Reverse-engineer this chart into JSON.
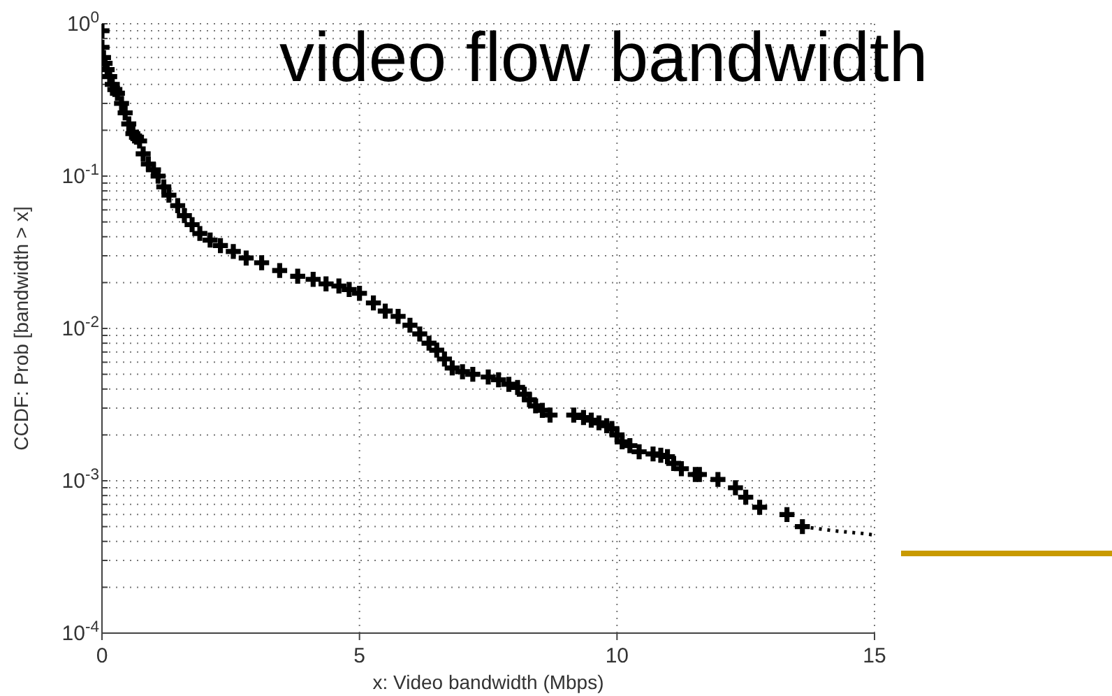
{
  "chart_data": {
    "type": "scatter",
    "title": "video flow bandwidth",
    "xlabel": "x: Video bandwidth (Mbps)",
    "ylabel": "CCDF: Prob [bandwidth > x]",
    "log": "y",
    "grid": true,
    "xlim": [
      0,
      15
    ],
    "xticks": [
      0,
      5,
      10,
      15
    ],
    "ylim": [
      0.0001,
      1
    ],
    "yticks": [
      {
        "value": 0.0001,
        "label": "10$^{-4}$"
      },
      {
        "value": 0.0002,
        "label": null
      },
      {
        "value": 0.0003,
        "label": null
      },
      {
        "value": 0.0004,
        "label": null
      },
      {
        "value": 0.0005,
        "label": null
      },
      {
        "value": 0.0006,
        "label": null
      },
      {
        "value": 0.0007,
        "label": null
      },
      {
        "value": 0.0008,
        "label": null
      },
      {
        "value": 0.0009,
        "label": null
      },
      {
        "value": 0.001,
        "label": "10$^{-3}$"
      },
      {
        "value": 0.002,
        "label": null
      },
      {
        "value": 0.003,
        "label": null
      },
      {
        "value": 0.004,
        "label": null
      },
      {
        "value": 0.005,
        "label": null
      },
      {
        "value": 0.006,
        "label": null
      },
      {
        "value": 0.007,
        "label": null
      },
      {
        "value": 0.008,
        "label": null
      },
      {
        "value": 0.009,
        "label": null
      },
      {
        "value": 0.01,
        "label": "10$^{-2}$"
      },
      {
        "value": 0.02,
        "label": null
      },
      {
        "value": 0.03,
        "label": null
      },
      {
        "value": 0.04,
        "label": null
      },
      {
        "value": 0.05,
        "label": null
      },
      {
        "value": 0.06,
        "label": null
      },
      {
        "value": 0.07,
        "label": null
      },
      {
        "value": 0.08,
        "label": null
      },
      {
        "value": 0.09,
        "label": null
      },
      {
        "value": 0.1,
        "label": "10$^{-1}$"
      },
      {
        "value": 0.2,
        "label": null
      },
      {
        "value": 0.3,
        "label": null
      },
      {
        "value": 0.4,
        "label": null
      },
      {
        "value": 0.5,
        "label": null
      },
      {
        "value": 0.6,
        "label": null
      },
      {
        "value": 0.7,
        "label": null
      },
      {
        "value": 0.8,
        "label": null
      },
      {
        "value": 0.9,
        "label": null
      },
      {
        "value": 1,
        "label": "10$^{0}$"
      }
    ],
    "series": [
      {
        "marker": "cross",
        "color": "#000000",
        "x": [
          0,
          0,
          0.03,
          0.06,
          0.1,
          0.15,
          0.2,
          0.25,
          0.3,
          0.38,
          0.45,
          0.52,
          0.6,
          0.67,
          0.73,
          0.8,
          0.9,
          1,
          1.09,
          1.2,
          1.3,
          1.47,
          1.6,
          1.75,
          1.9,
          2.1,
          2.3,
          2.55,
          2.8,
          3.1,
          3.45,
          3.8,
          4.1,
          4.35,
          4.6,
          4.8,
          5,
          5.27,
          5.5,
          5.75,
          5.98,
          6.17,
          6.35,
          6.5,
          6.65,
          6.8,
          7,
          7.2,
          7.5,
          7.7,
          7.9,
          8.07,
          8.2,
          8.3,
          8.42,
          8.55,
          8.7,
          9.16,
          9.35,
          9.5,
          9.65,
          9.8,
          9.9,
          10,
          10.1,
          10.25,
          10.43,
          10.7,
          10.85,
          10.98,
          11.1,
          11.25,
          11.52,
          11.6,
          11.96,
          12.3,
          12.5,
          12.77,
          13.3,
          13.6
        ],
        "values": [
          0.9,
          0.7,
          0.6,
          0.55,
          0.5,
          0.45,
          0.4,
          0.37,
          0.35,
          0.3,
          0.26,
          0.22,
          0.19,
          0.18,
          0.17,
          0.14,
          0.12,
          0.11,
          0.1,
          0.085,
          0.075,
          0.064,
          0.055,
          0.048,
          0.042,
          0.038,
          0.035,
          0.032,
          0.029,
          0.027,
          0.024,
          0.022,
          0.021,
          0.0196,
          0.019,
          0.018,
          0.017,
          0.0147,
          0.013,
          0.012,
          0.0105,
          0.0092,
          0.008,
          0.0072,
          0.0063,
          0.0055,
          0.0052,
          0.005,
          0.0048,
          0.0046,
          0.0043,
          0.0041,
          0.0037,
          0.0034,
          0.0031,
          0.0029,
          0.0027,
          0.0027,
          0.0026,
          0.0025,
          0.0024,
          0.0023,
          0.0022,
          0.002,
          0.0018,
          0.0017,
          0.00155,
          0.0015,
          0.00147,
          0.00144,
          0.0013,
          0.0012,
          0.0011,
          0.0011,
          0.00102,
          0.0009,
          0.00078,
          0.00067,
          0.0006,
          0.0005
        ]
      },
      {
        "type": "line",
        "marker": "none",
        "color": "#000000",
        "line_style": "dotted",
        "x": [
          13.6,
          14.2,
          14.8,
          15
        ],
        "values": [
          0.0005,
          0.00047,
          0.00045,
          0.00044
        ]
      }
    ]
  }
}
